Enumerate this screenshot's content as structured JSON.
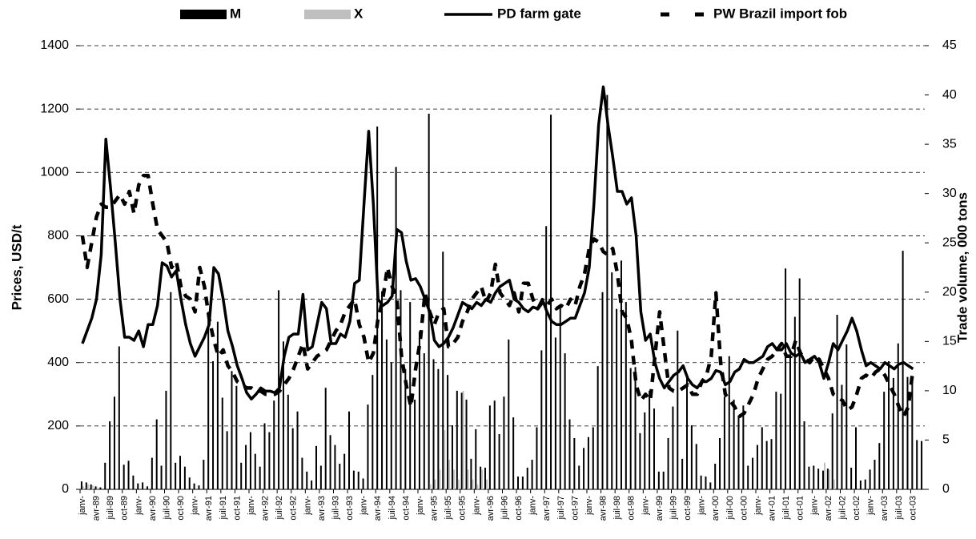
{
  "chart_data": {
    "type": "combo",
    "y_label": "Prices, USD/t",
    "y2_label": "Trade volume, 000 tons",
    "ylim": [
      0,
      1400
    ],
    "yticks": [
      0,
      200,
      400,
      600,
      800,
      1000,
      1200,
      1400
    ],
    "y2lim": [
      0,
      45
    ],
    "y2ticks": [
      0,
      5,
      10,
      15,
      20,
      25,
      30,
      35,
      40,
      45
    ],
    "grid": true,
    "categories": [
      "janv-",
      null,
      null,
      "avr-89",
      null,
      null,
      "juil-89",
      null,
      null,
      "oct-89",
      null,
      null,
      "janv-",
      null,
      null,
      "avr-90",
      null,
      null,
      "juil-90",
      null,
      null,
      "oct-90",
      null,
      null,
      "janv-",
      null,
      null,
      "avr-91",
      null,
      null,
      "juil-91",
      null,
      null,
      "oct-91",
      null,
      null,
      "janv-",
      null,
      null,
      "avr-92",
      null,
      null,
      "juil-92",
      null,
      null,
      "oct-92",
      null,
      null,
      "janv-",
      null,
      null,
      "avr-93",
      null,
      null,
      "juil-93",
      null,
      null,
      "oct-93",
      null,
      null,
      "janv-",
      null,
      null,
      "avr-94",
      null,
      null,
      "juil-94",
      null,
      null,
      "oct-94",
      null,
      null,
      "janv-",
      null,
      null,
      "avr-95",
      null,
      null,
      "juil-95",
      null,
      null,
      "oct-95",
      null,
      null,
      "janv-",
      null,
      null,
      "avr-96",
      null,
      null,
      "juil-96",
      null,
      null,
      "oct-96",
      null,
      null,
      "janv-",
      null,
      null,
      "avr-97",
      null,
      null,
      "juil-97",
      null,
      null,
      "oct-97",
      null,
      null,
      "janv-",
      null,
      null,
      "avr-98",
      null,
      null,
      "juil-98",
      null,
      null,
      "oct-98",
      null,
      null,
      "janv-",
      null,
      null,
      "avr-99",
      null,
      null,
      "juil-99",
      null,
      null,
      "oct-99",
      null,
      null,
      "janv-",
      null,
      null,
      "avr-00",
      null,
      null,
      "juil-00",
      null,
      null,
      "oct-00",
      null,
      null,
      "janv-",
      null,
      null,
      "avr-01",
      null,
      null,
      "juil-01",
      null,
      null,
      "oct-01",
      null,
      null,
      "janv-",
      null,
      null,
      "avr-02",
      null,
      null,
      "juil-02",
      null,
      null,
      "oct-02",
      null,
      null,
      "janv-",
      null,
      null,
      "avr-03",
      null,
      null,
      "juil-03",
      null,
      null,
      "oct-03",
      null,
      null
    ],
    "series": [
      {
        "name": "M",
        "type": "bar",
        "axis": "y2",
        "color": "#000000",
        "values": [
          0.8,
          0.7,
          0.5,
          0.3,
          0.2,
          2.7,
          6.9,
          9.4,
          14.5,
          2.5,
          2.9,
          1.4,
          0.6,
          0.7,
          0.3,
          3.2,
          7.1,
          2.4,
          10,
          20,
          2.7,
          3.4,
          2.3,
          1.2,
          0.6,
          0.4,
          3,
          18,
          13,
          17,
          9.3,
          5.9,
          12,
          10.5,
          2.7,
          4.5,
          5.8,
          3.6,
          2.3,
          6.7,
          5.8,
          9,
          20.2,
          15,
          9.6,
          6.2,
          7.9,
          3.2,
          1.8,
          0.9,
          4.4,
          2.4,
          10.3,
          5.5,
          4.5,
          2.6,
          3.6,
          7.9,
          1.9,
          1.8,
          1.1,
          8.6,
          11.6,
          36.8,
          20.1,
          15.2,
          12.9,
          32.7,
          20.2,
          12.2,
          19,
          9.1,
          16,
          13.8,
          38.1,
          13.2,
          12.2,
          24.1,
          11.6,
          6.5,
          10,
          9.8,
          9.1,
          3.1,
          6.1,
          2.3,
          2.2,
          8.5,
          9,
          5.6,
          9.4,
          15.2,
          7.3,
          1.3,
          1.3,
          2.2,
          3,
          6.3,
          14.1,
          26.7,
          38,
          15.4,
          18.5,
          13.8,
          7.1,
          5.2,
          2.4,
          4.2,
          5.3,
          6.3,
          12.5,
          20,
          40,
          22,
          18.3,
          23.2,
          19,
          12.3,
          12.4,
          5.7,
          7.8,
          10,
          8.2,
          1.8,
          1.8,
          5.2,
          8.4,
          16.1,
          3.1,
          11.6,
          6.5,
          4.6,
          1.4,
          1.3,
          0.7,
          2.6,
          5.2,
          9.4,
          13.5,
          9.1,
          7.5,
          8.5,
          2.4,
          3.2,
          4.5,
          6.3,
          4.9,
          5.1,
          9.9,
          9.7,
          22.4,
          13.7,
          17.5,
          21.4,
          6.9,
          2.3,
          2.4,
          2.1,
          1.9,
          2.1,
          7.7,
          17.7,
          10.6,
          14.7,
          2.2,
          6.3,
          0.9,
          1,
          2,
          3,
          4.7,
          9.9,
          13,
          11.3,
          14.8,
          24.2,
          11.4,
          11.3,
          5,
          4.9
        ]
      },
      {
        "name": "X",
        "type": "bar",
        "axis": "y2",
        "color": "#bfbfbf",
        "values": [
          0.3,
          0.5,
          0.4,
          0.2,
          0,
          0,
          0,
          0,
          0,
          0,
          0,
          0,
          0,
          0,
          0,
          0,
          0,
          0,
          0,
          0,
          0,
          0,
          0,
          0,
          0,
          0,
          0,
          0,
          0,
          0,
          0,
          0,
          0,
          0,
          0,
          0,
          0,
          0,
          0,
          0,
          0,
          0,
          0,
          0,
          0,
          0,
          0,
          0,
          0,
          0,
          0,
          0,
          0,
          0,
          0,
          0,
          0,
          0,
          0,
          0,
          0,
          0,
          0,
          0,
          0,
          0,
          0,
          0,
          0,
          0,
          0,
          0,
          0,
          0,
          0.5,
          1,
          2,
          6,
          3,
          2,
          1,
          10,
          2,
          1,
          0.5,
          2,
          1,
          0,
          0,
          0,
          0,
          0,
          0,
          0,
          0,
          0,
          0,
          0,
          0,
          0,
          0,
          0,
          0,
          0,
          0,
          0,
          0,
          0,
          0,
          0,
          0,
          0,
          0,
          0,
          0,
          0,
          0,
          0,
          0,
          0,
          0,
          0,
          0,
          0,
          0,
          0,
          0,
          0,
          0,
          0,
          0,
          0,
          0,
          0,
          0,
          0,
          0,
          0,
          0,
          0,
          0,
          0,
          0,
          0,
          0,
          0,
          0,
          0,
          0,
          0,
          0,
          0,
          0,
          0,
          0,
          0,
          0,
          0,
          2.7,
          2,
          1,
          0,
          0,
          0,
          0,
          0,
          0,
          0,
          0,
          0,
          0,
          0,
          0,
          0,
          0,
          0,
          0,
          0,
          0,
          0
        ]
      },
      {
        "name": "PD farm gate",
        "type": "line",
        "color": "#000000",
        "dashed": false,
        "values": [
          460,
          500,
          540,
          600,
          740,
          1105,
          950,
          780,
          600,
          480,
          480,
          470,
          500,
          450,
          520,
          520,
          580,
          715,
          705,
          670,
          690,
          600,
          520,
          460,
          420,
          450,
          480,
          520,
          700,
          680,
          600,
          500,
          450,
          390,
          350,
          305,
          285,
          300,
          320,
          310,
          310,
          305,
          320,
          420,
          480,
          490,
          490,
          615,
          440,
          450,
          520,
          590,
          570,
          460,
          460,
          490,
          480,
          530,
          650,
          660,
          900,
          1130,
          900,
          600,
          580,
          590,
          610,
          820,
          810,
          720,
          660,
          665,
          640,
          600,
          560,
          470,
          450,
          460,
          480,
          510,
          550,
          590,
          580,
          570,
          590,
          580,
          600,
          590,
          620,
          640,
          650,
          660,
          600,
          590,
          570,
          560,
          575,
          570,
          600,
          560,
          530,
          520,
          520,
          530,
          540,
          540,
          580,
          620,
          700,
          900,
          1150,
          1270,
          1150,
          1050,
          940,
          940,
          900,
          920,
          800,
          560,
          470,
          490,
          400,
          350,
          320,
          340,
          360,
          370,
          390,
          350,
          330,
          320,
          340,
          340,
          350,
          375,
          370,
          330,
          340,
          370,
          380,
          410,
          400,
          400,
          410,
          420,
          450,
          460,
          440,
          440,
          460,
          430,
          420,
          430,
          400,
          410,
          420,
          400,
          350,
          400,
          460,
          440,
          470,
          500,
          540,
          500,
          440,
          390,
          400,
          390,
          380,
          400,
          390,
          380,
          395,
          400,
          390,
          380,
          null,
          null
        ]
      },
      {
        "name": "PW Brazil import fob",
        "type": "line",
        "color": "#000000",
        "dashed": true,
        "values": [
          800,
          700,
          780,
          860,
          900,
          890,
          890,
          910,
          930,
          900,
          940,
          870,
          960,
          990,
          990,
          900,
          820,
          800,
          780,
          700,
          720,
          640,
          610,
          600,
          560,
          700,
          640,
          540,
          470,
          420,
          440,
          390,
          370,
          340,
          330,
          320,
          320,
          310,
          310,
          300,
          300,
          300,
          310,
          330,
          350,
          380,
          420,
          460,
          380,
          400,
          420,
          430,
          440,
          470,
          500,
          520,
          560,
          580,
          600,
          520,
          480,
          400,
          430,
          540,
          600,
          700,
          640,
          600,
          420,
          330,
          260,
          380,
          470,
          620,
          560,
          520,
          560,
          570,
          450,
          460,
          480,
          530,
          560,
          600,
          620,
          640,
          590,
          620,
          710,
          620,
          600,
          580,
          620,
          560,
          650,
          650,
          600,
          570,
          590,
          580,
          600,
          570,
          580,
          570,
          600,
          580,
          640,
          680,
          760,
          790,
          780,
          750,
          740,
          760,
          680,
          560,
          540,
          470,
          330,
          280,
          300,
          280,
          420,
          560,
          440,
          320,
          310,
          310,
          320,
          330,
          300,
          300,
          340,
          360,
          420,
          620,
          400,
          300,
          280,
          260,
          230,
          240,
          270,
          300,
          350,
          380,
          410,
          420,
          440,
          460,
          420,
          420,
          470,
          430,
          410,
          400,
          420,
          410,
          380,
          350,
          300,
          290,
          280,
          250,
          260,
          300,
          350,
          360,
          350,
          370,
          380,
          360,
          330,
          300,
          260,
          230,
          260,
          380,
          null,
          null
        ]
      }
    ]
  }
}
